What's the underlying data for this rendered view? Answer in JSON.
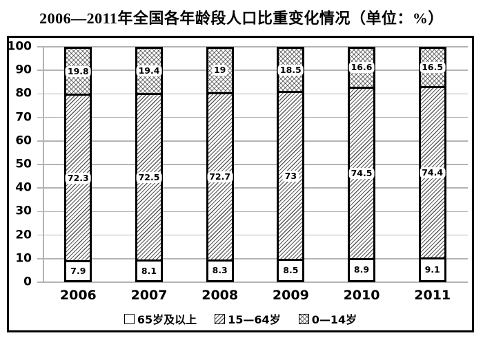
{
  "chart_data": {
    "type": "bar",
    "stacked": true,
    "title": "2006—2011年全国各年龄段人口比重变化情况（单位：%）",
    "categories": [
      "2006",
      "2007",
      "2008",
      "2009",
      "2010",
      "2011"
    ],
    "series": [
      {
        "name": "65岁及以上",
        "pattern": "plain",
        "values": [
          7.9,
          8.1,
          8.3,
          8.5,
          8.9,
          9.1
        ]
      },
      {
        "name": "15—64岁",
        "pattern": "diagonal",
        "values": [
          72.3,
          72.5,
          72.7,
          73,
          74.5,
          74.4
        ]
      },
      {
        "name": "0—14岁",
        "pattern": "crosshatch",
        "values": [
          19.8,
          19.4,
          19,
          18.5,
          16.6,
          16.5
        ]
      }
    ],
    "ylim": [
      0,
      100
    ],
    "y_ticks": [
      100,
      90,
      80,
      70,
      60,
      50,
      40,
      30,
      20,
      10,
      0
    ],
    "grid": "horizontal",
    "legend_position": "bottom-inside"
  },
  "colors": {
    "grid": "#b3b3b3",
    "bar_border": "#000000",
    "frame_border": "#000000",
    "background": "#ffffff",
    "text": "#000000"
  }
}
